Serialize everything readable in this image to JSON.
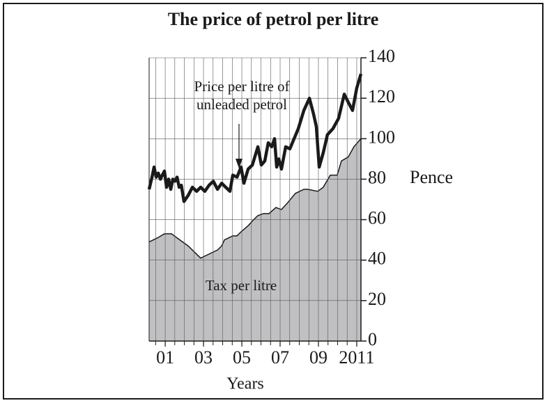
{
  "chart_data": {
    "type": "line",
    "title": "The price of petrol per litre",
    "xlabel": "Years",
    "ylabel": "Pence",
    "annotations": [
      "Price per litre of",
      "unleaded petrol",
      "Tax per litre"
    ],
    "xlim": [
      2000.16,
      2011.22
    ],
    "xticks": [
      {
        "value": 2001,
        "label": "01"
      },
      {
        "value": 2003,
        "label": "03"
      },
      {
        "value": 2005,
        "label": "05"
      },
      {
        "value": 2007,
        "label": "07"
      },
      {
        "value": 2009,
        "label": "09"
      },
      2011
    ],
    "xminor": [
      2000.5,
      2001,
      2001.5,
      2002,
      2002.5,
      2003,
      2003.5,
      2004,
      2004.5,
      2005,
      2005.5,
      2006,
      2006.5,
      2007,
      2007.5,
      2008,
      2008.5,
      2009,
      2009.5,
      2010,
      2010.5,
      2011
    ],
    "ylim": [
      0,
      140
    ],
    "yticks": [
      0,
      20,
      40,
      60,
      80,
      100,
      120,
      140
    ],
    "grid": true,
    "series": [
      {
        "name": "Price per litre of unleaded petrol",
        "color": "#1a1a1a",
        "kind": "line",
        "x": [
          2000.16,
          2000.31,
          2000.42,
          2000.53,
          2000.64,
          2000.75,
          2000.85,
          2000.96,
          2001.07,
          2001.18,
          2001.29,
          2001.4,
          2001.51,
          2001.62,
          2001.73,
          2001.84,
          2001.98,
          2002.2,
          2002.42,
          2002.64,
          2002.85,
          2003.07,
          2003.29,
          2003.51,
          2003.73,
          2003.95,
          2004.16,
          2004.38,
          2004.53,
          2004.75,
          2004.96,
          2005.11,
          2005.33,
          2005.55,
          2005.84,
          2006.02,
          2006.2,
          2006.38,
          2006.56,
          2006.71,
          2006.82,
          2006.93,
          2007.07,
          2007.29,
          2007.51,
          2007.73,
          2007.95,
          2008.24,
          2008.53,
          2008.75,
          2008.89,
          2009.04,
          2009.25,
          2009.47,
          2009.76,
          2010.05,
          2010.35,
          2010.56,
          2010.78,
          2011,
          2011.22
        ],
        "values": [
          75,
          81,
          86,
          81,
          83,
          80,
          82,
          84,
          76,
          80,
          75,
          80,
          79,
          81,
          76,
          77,
          69,
          72,
          76,
          74,
          76,
          74,
          77,
          79,
          75,
          78,
          76,
          74,
          82,
          81,
          86,
          78,
          85,
          87,
          96,
          87,
          89,
          98,
          96,
          100,
          86,
          90,
          85,
          96,
          95,
          100,
          105,
          114,
          120,
          112,
          106,
          86,
          93,
          102,
          105,
          110,
          122,
          118,
          114,
          125,
          132
        ]
      },
      {
        "name": "Tax per litre",
        "color": "#c0c0c3",
        "kind": "area",
        "x": [
          2000.16,
          2000.6,
          2000.96,
          2001.33,
          2001.76,
          2002.2,
          2002.85,
          2003.29,
          2003.73,
          2003.95,
          2004.09,
          2004.53,
          2004.75,
          2004.96,
          2005.33,
          2005.62,
          2005.84,
          2006.13,
          2006.42,
          2006.78,
          2007.07,
          2007.36,
          2007.8,
          2008.24,
          2008.45,
          2008.96,
          2009.25,
          2009.62,
          2009.98,
          2010.2,
          2010.56,
          2010.85,
          2011.22
        ],
        "values": [
          49,
          51,
          53,
          53,
          50,
          47,
          41,
          43,
          45,
          47,
          50,
          52,
          52,
          54,
          57,
          60,
          62,
          63,
          63,
          66,
          65,
          68,
          73,
          75,
          75,
          74,
          76,
          82,
          82,
          89,
          91,
          96,
          100
        ]
      }
    ]
  }
}
